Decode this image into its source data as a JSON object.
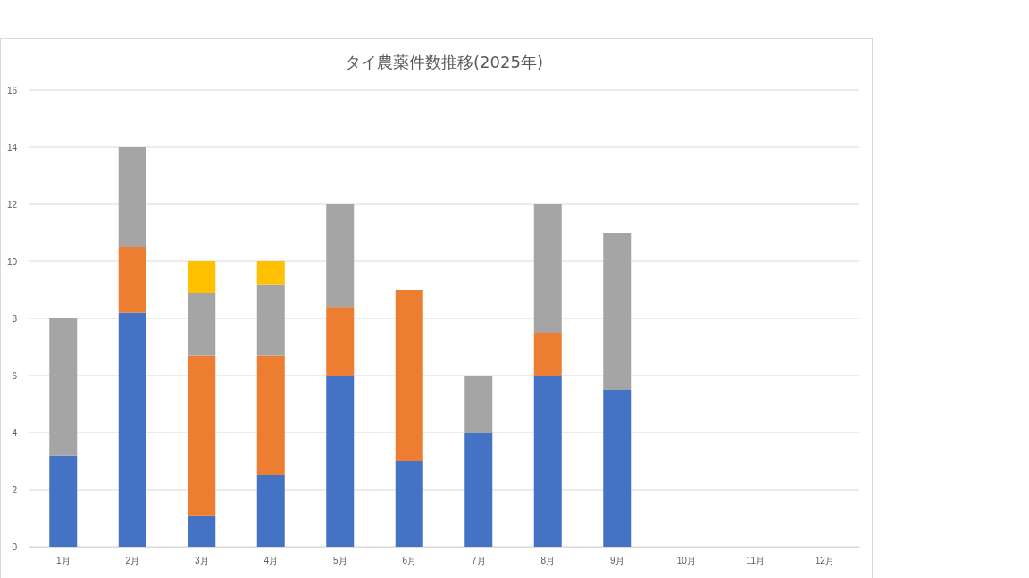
{
  "chart_data": {
    "type": "bar",
    "title": "タイ農薬件数推移(2025年)",
    "stacked": true,
    "grid": "y",
    "categories": [
      "1月",
      "2月",
      "3月",
      "4月",
      "5月",
      "6月",
      "7月",
      "8月",
      "9月",
      "10月",
      "11月",
      "12月"
    ],
    "series": [
      {
        "color": "#4472c4",
        "values": [
          3.2,
          8.2,
          1.1,
          2.5,
          6,
          3,
          4,
          6,
          5.5,
          null,
          null,
          null
        ]
      },
      {
        "color": "#ed7d31",
        "values": [
          null,
          2.3,
          5.6,
          4.2,
          2.4,
          6,
          null,
          1.5,
          null,
          null,
          null,
          null
        ]
      },
      {
        "color": "#a5a5a5",
        "values": [
          4.8,
          3.5,
          2.2,
          2.5,
          3.6,
          null,
          2,
          4.5,
          5.5,
          null,
          null,
          null
        ]
      },
      {
        "color": "#ffc000",
        "values": [
          null,
          null,
          1.1,
          0.8,
          null,
          null,
          null,
          null,
          null,
          null,
          null,
          null
        ]
      }
    ],
    "ylim": [
      0,
      16
    ],
    "yticks": [
      0,
      2,
      4,
      6,
      8,
      10,
      12,
      14,
      16
    ]
  }
}
